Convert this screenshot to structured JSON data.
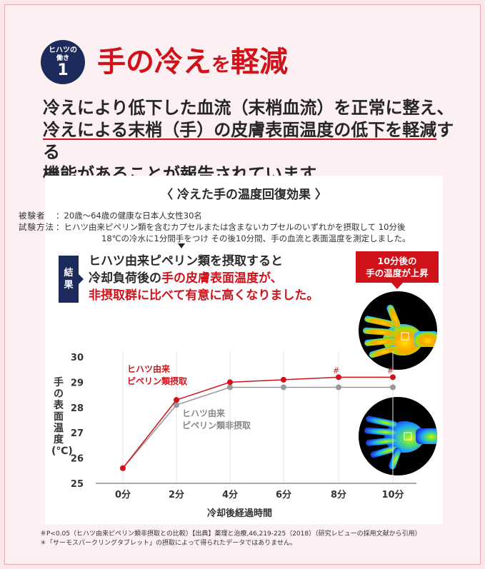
{
  "badge": {
    "line1": "ヒハツの",
    "line2": "働き",
    "number": "1"
  },
  "title": {
    "part1": "手の冷え",
    "part2": "を",
    "part3": "軽減"
  },
  "lead": {
    "line1": "冷えにより低下した血流（末梢血流）を正常に整え、",
    "line2_underlined": "冷えによる末梢（手）の皮膚表面温度の低下を軽減",
    "line2_rest": "する",
    "line3": "機能があることが報告されています。"
  },
  "panel": {
    "title": "〈 冷えた手の温度回復効果 〉",
    "subjects_key": "被験者",
    "subjects_value": "：20歳〜64歳の健康な日本人女性30名",
    "method_key": "試験方法",
    "method_line1": "：ヒハツ由来ピペリン類を含むカプセルまたは含まないカプセルのいずれかを摂取して 10分後",
    "method_line2": "18℃の冷水に1分間手をつけ その後10分間、手の血流と表面温度を測定しました。",
    "result_tag": [
      "結",
      "果"
    ],
    "result_line1": "ヒハツ由来ピペリン類を摂取すると",
    "result_line2_a": "冷却負荷後の",
    "result_line2_b": "手の皮膚表面温度が、",
    "result_line3": "非摂取群に比べて有意に高くなりました。",
    "callout_line1": "10分後の",
    "callout_line2": "手の温度が上昇"
  },
  "colors": {
    "accent_red": "#d0121b",
    "navy": "#1d2b5c",
    "gray_series": "#999999"
  },
  "chart_data": {
    "type": "line",
    "x": [
      "0分",
      "2分",
      "4分",
      "6分",
      "8分",
      "10分"
    ],
    "xlabel": "冷却後経過時間",
    "ylabel": "手の表面温度(℃)",
    "ylim": [
      25,
      30
    ],
    "yticks": [
      "25",
      "26",
      "27",
      "28",
      "29",
      "30"
    ],
    "series": [
      {
        "name": "ヒハツ由来ピペリン類摂取",
        "label_line1": "ヒハツ由来",
        "label_line2": "ピペリン類摂取",
        "color": "#d0121b",
        "values": [
          25.6,
          28.3,
          29.0,
          29.1,
          29.2,
          29.2
        ]
      },
      {
        "name": "ヒハツ由来ピペリン類非摂取",
        "label_line1": "ヒハツ由来",
        "label_line2": "ピペリン類非摂取",
        "color": "#999999",
        "values": [
          25.6,
          28.1,
          28.8,
          28.8,
          28.8,
          28.8
        ]
      }
    ],
    "annotations": [
      {
        "x": "8分",
        "mark": "#"
      },
      {
        "x": "10分",
        "mark": "#"
      }
    ]
  },
  "footnotes": {
    "line1": "＃P<0.05（ヒハツ由来ピペリン類非摂取との比較）【出典】薬理と治療,46,219-225（2018）（研究レビューの採用文献から引用）",
    "line2": "＊「サーモスパークリングタブレット」の摂取によって得られたデータではありません。"
  }
}
